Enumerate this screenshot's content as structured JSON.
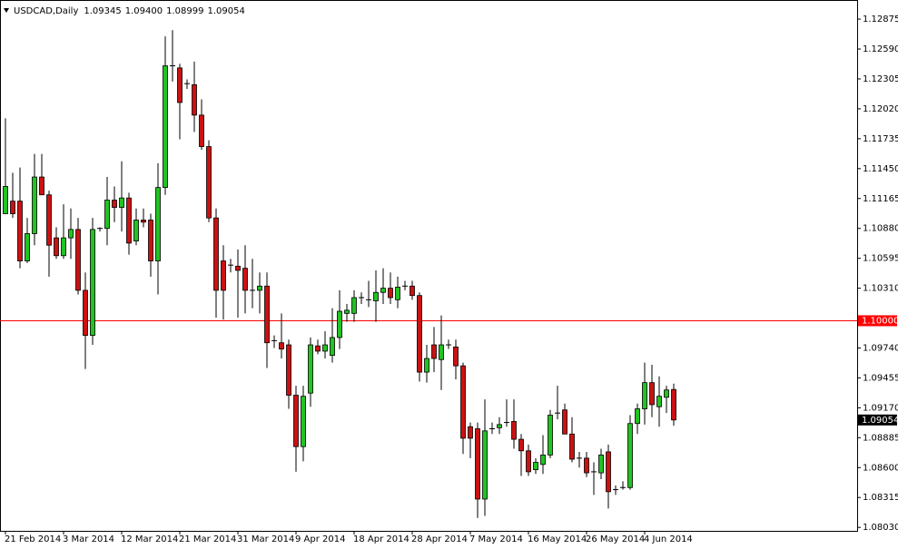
{
  "chart_data": {
    "type": "candlestick",
    "title": "USDCAD,Daily",
    "header_labels": {
      "open": "1.09345",
      "high": "1.09400",
      "low": "1.08999",
      "close": "1.09054"
    },
    "categories": [
      "21 Feb 2014",
      null,
      null,
      null,
      null,
      null,
      null,
      null,
      "3 Mar 2014",
      null,
      null,
      null,
      null,
      null,
      null,
      null,
      "12 Mar 2014",
      null,
      null,
      null,
      null,
      null,
      null,
      null,
      "21 Mar 2014",
      null,
      null,
      null,
      null,
      null,
      null,
      null,
      "31 Mar 2014",
      null,
      null,
      null,
      null,
      null,
      null,
      null,
      "9 Apr 2014",
      null,
      null,
      null,
      null,
      null,
      null,
      null,
      "18 Apr 2014",
      null,
      null,
      null,
      null,
      null,
      null,
      null,
      "28 Apr 2014",
      null,
      null,
      null,
      null,
      null,
      null,
      null,
      "7 May 2014",
      null,
      null,
      null,
      null,
      null,
      null,
      null,
      "16 May 2014",
      null,
      null,
      null,
      null,
      null,
      null,
      null,
      "26 May 2014",
      null,
      null,
      null,
      null,
      null,
      null,
      null,
      "4 Jun 2014",
      null,
      null,
      null,
      null
    ],
    "open": [
      1.1102,
      1.1114,
      1.1114,
      1.1057,
      1.1083,
      1.1137,
      1.112,
      1.1079,
      1.1062,
      1.1079,
      1.1087,
      1.1029,
      1.0986,
      1.1088,
      1.1088,
      1.1115,
      1.1108,
      1.1117,
      1.1076,
      1.1096,
      1.1096,
      1.1057,
      1.1127,
      1.1243,
      1.1241,
      1.1226,
      1.1225,
      1.1196,
      1.1166,
      1.1098,
      1.1057,
      1.1053,
      1.1052,
      1.105,
      1.1029,
      1.1029,
      1.1033,
      1.0981,
      1.0979,
      1.0977,
      1.0929,
      1.088,
      1.0931,
      1.0976,
      1.0971,
      1.0967,
      1.0984,
      1.1007,
      1.1007,
      1.1022,
      1.102,
      1.1019,
      1.1027,
      1.1031,
      1.102,
      1.1033,
      1.1033,
      1.1024,
      1.0951,
      1.0977,
      1.0963,
      1.0977,
      1.0975,
      1.0957,
      1.0899,
      1.0897,
      1.083,
      1.0897,
      1.0898,
      1.0903,
      1.0904,
      1.0887,
      1.0876,
      1.0858,
      1.0863,
      1.0872,
      1.0912,
      1.0915,
      1.0892,
      1.0869,
      1.0869,
      1.0856,
      1.0855,
      1.0875,
      1.0839,
      1.0841,
      1.0841,
      1.0902,
      1.0916,
      1.0941,
      1.0918,
      1.0927,
      1.09345
    ],
    "high": [
      1.1193,
      1.1141,
      1.1146,
      1.1098,
      1.1159,
      1.1159,
      1.1124,
      1.1089,
      1.1111,
      1.1107,
      1.1098,
      1.1046,
      1.1098,
      1.1089,
      1.1137,
      1.1128,
      1.1152,
      1.1122,
      1.1107,
      1.1107,
      1.1102,
      1.115,
      1.1271,
      1.1277,
      1.1245,
      1.123,
      1.1247,
      1.1211,
      1.1172,
      1.1107,
      1.1072,
      1.1059,
      1.1068,
      1.1072,
      1.1059,
      1.1046,
      1.1046,
      1.0986,
      1.1007,
      1.0982,
      1.0938,
      1.0938,
      1.0984,
      1.0982,
      1.099,
      1.1012,
      1.1029,
      1.1016,
      1.1029,
      1.1027,
      1.1038,
      1.1048,
      1.105,
      1.1046,
      1.1042,
      1.1038,
      1.1038,
      1.1027,
      1.0977,
      1.0994,
      1.1005,
      1.0982,
      1.0982,
      1.096,
      1.0903,
      1.0903,
      1.0925,
      1.0903,
      1.0908,
      1.0925,
      1.0925,
      1.0892,
      1.0882,
      1.0869,
      1.0891,
      1.0915,
      1.0938,
      1.0921,
      1.0908,
      1.0875,
      1.0875,
      1.0865,
      1.0878,
      1.0882,
      1.0843,
      1.0847,
      1.091,
      1.0921,
      1.096,
      1.0958,
      1.0947,
      1.0938,
      1.094
    ],
    "low": [
      1.1102,
      1.1098,
      1.105,
      1.1055,
      1.1072,
      1.112,
      1.1042,
      1.1059,
      1.1059,
      1.1059,
      1.1025,
      1.0954,
      1.0977,
      1.1085,
      1.1072,
      1.1094,
      1.1085,
      1.1063,
      1.1072,
      1.1089,
      1.1042,
      1.1025,
      1.112,
      1.1228,
      1.1173,
      1.1221,
      1.118,
      1.1163,
      1.1094,
      1.1003,
      1.1001,
      1.1046,
      1.1003,
      1.1007,
      1.1012,
      1.1007,
      1.0955,
      1.0974,
      1.0964,
      1.0916,
      1.0856,
      1.0866,
      1.0918,
      1.0968,
      1.0964,
      1.096,
      1.0973,
      1.0999,
      1.0999,
      1.1016,
      1.1013,
      1.0999,
      1.1016,
      1.1016,
      1.1012,
      1.1029,
      1.102,
      1.0942,
      1.0941,
      1.0951,
      1.0934,
      1.0973,
      1.0944,
      1.0873,
      1.0869,
      1.0812,
      1.0814,
      1.0892,
      1.0892,
      1.0899,
      1.0878,
      1.0852,
      1.0852,
      1.0854,
      1.0854,
      1.0869,
      1.0906,
      1.0892,
      1.0865,
      1.086,
      1.0851,
      1.0834,
      1.0849,
      1.0821,
      1.0834,
      1.0839,
      1.0839,
      1.0892,
      1.0901,
      1.0908,
      1.0899,
      1.0912,
      1.08999
    ],
    "close": [
      1.1128,
      1.1102,
      1.1057,
      1.1083,
      1.1137,
      1.112,
      1.1072,
      1.1062,
      1.1079,
      1.1087,
      1.1029,
      1.0986,
      1.1087,
      1.1088,
      1.1115,
      1.1108,
      1.1117,
      1.1074,
      1.1096,
      1.1094,
      1.1057,
      1.1127,
      1.1243,
      1.1243,
      1.1208,
      1.1226,
      1.1196,
      1.1166,
      1.1098,
      1.1029,
      1.1029,
      1.1053,
      1.1048,
      1.1029,
      1.1029,
      1.1033,
      1.0979,
      1.0981,
      1.0973,
      1.0929,
      1.088,
      1.0928,
      1.0977,
      1.0971,
      1.0977,
      1.0984,
      1.1009,
      1.101,
      1.1022,
      1.1022,
      1.102,
      1.1027,
      1.1031,
      1.1022,
      1.1032,
      1.1033,
      1.1024,
      1.0951,
      1.0964,
      1.0964,
      1.0977,
      1.0977,
      1.0957,
      1.0888,
      1.0888,
      1.083,
      1.0895,
      1.0897,
      1.0901,
      1.0903,
      1.0887,
      1.0876,
      1.0856,
      1.0865,
      1.0872,
      1.091,
      1.0912,
      1.0892,
      1.0868,
      1.0869,
      1.0855,
      1.0856,
      1.0872,
      1.0837,
      1.0839,
      1.0841,
      1.0902,
      1.0916,
      1.0941,
      1.092,
      1.0928,
      1.0934,
      1.09054
    ],
    "last_label": "1.09054",
    "up_color": "#22c322",
    "down_color": "#cc1111",
    "wick_color": "#000000",
    "ylim": [
      1.07997,
      1.13014
    ],
    "yticks": [
      1.12875,
      {
        "value": 1.1259,
        "label": "1.12590"
      },
      1.12305,
      {
        "value": 1.1202,
        "label": "1.12020"
      },
      1.11735,
      {
        "value": 1.1145,
        "label": "1.11450"
      },
      1.11165,
      {
        "value": 1.1088,
        "label": "1.10880"
      },
      1.10595,
      {
        "value": 1.1031,
        "label": "1.10310"
      },
      {
        "value": 1.0974,
        "label": "1.09740"
      },
      1.09455,
      {
        "value": 1.0917,
        "label": "1.09170"
      },
      1.08885,
      {
        "value": 1.086,
        "label": "1.08600"
      },
      1.08315,
      {
        "value": 1.0803,
        "label": "1.08030"
      }
    ],
    "hline": {
      "value": 1.1,
      "label": "1.10000",
      "color": "#ff0000"
    },
    "grid": false
  }
}
